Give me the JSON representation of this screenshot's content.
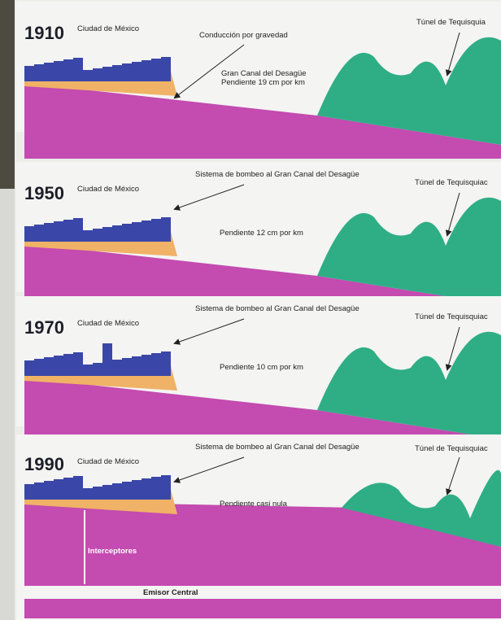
{
  "panels": [
    {
      "year": "1910",
      "city": "Ciudad de México",
      "note": "Conducción por gravedad",
      "channel": "Gran Canal del Desagüe",
      "slope": "Pendiente 19 cm por km",
      "tunnel": "Túnel de Tequisquia"
    },
    {
      "year": "1950",
      "city": "Ciudad de México",
      "note": "Sistema de bombeo al Gran Canal del Desagüe",
      "slope": "Pendiente 12 cm por km",
      "tunnel": "Túnel de Tequisquiac"
    },
    {
      "year": "1970",
      "city": "Ciudad de México",
      "note": "Sistema de bombeo al Gran Canal del Desagüe",
      "slope": "Pendiente 10 cm por km",
      "tunnel": "Túnel de Tequisquiac"
    },
    {
      "year": "1990",
      "city": "Ciudad de México",
      "note": "Sistema de bombeo al Gran Canal del Desagüe",
      "slope": "Pendiente casi nula",
      "tunnel": "Túnel de Tequisquiac"
    }
  ],
  "interceptors": "Interceptores",
  "emitter": "Emisor Central"
}
